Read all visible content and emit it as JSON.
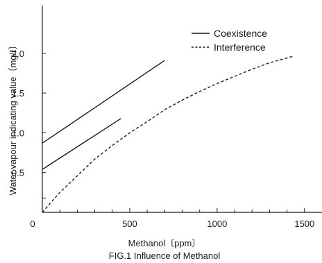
{
  "chart_data": {
    "type": "line",
    "title": "",
    "caption": "FIG.1 Influence of Methanol",
    "xlabel": "Methanol〔ppm〕",
    "ylabel": "Water vapour indicating value〔mg/ℓ〕",
    "xlim": [
      0,
      1600
    ],
    "ylim": [
      0,
      2.6
    ],
    "x_ticks": [
      0,
      500,
      1000,
      1500
    ],
    "y_ticks": [
      0.5,
      1.0,
      1.5,
      2.0
    ],
    "x_tick_labels": [
      "0",
      "500",
      "1000",
      "1500"
    ],
    "y_tick_labels": [
      "0.5",
      "1.0",
      "1.5",
      "2.0"
    ],
    "grid": false,
    "legend_position": "top-right",
    "series": [
      {
        "name": "Coexistence",
        "style": "solid",
        "points": [
          [
            0,
            0.87
          ],
          [
            700,
            1.91
          ]
        ]
      },
      {
        "name": "Coexistence",
        "style": "solid",
        "points": [
          [
            0,
            0.54
          ],
          [
            450,
            1.18
          ]
        ]
      },
      {
        "name": "Interference",
        "style": "dashed",
        "points": [
          [
            0,
            0.0
          ],
          [
            100,
            0.25
          ],
          [
            200,
            0.46
          ],
          [
            300,
            0.67
          ],
          [
            400,
            0.84
          ],
          [
            500,
            1.0
          ],
          [
            600,
            1.14
          ],
          [
            700,
            1.29
          ],
          [
            800,
            1.41
          ],
          [
            900,
            1.52
          ],
          [
            1000,
            1.62
          ],
          [
            1100,
            1.71
          ],
          [
            1200,
            1.8
          ],
          [
            1300,
            1.88
          ],
          [
            1430,
            1.96
          ]
        ]
      }
    ],
    "legend": [
      {
        "label": "Coexistence",
        "style": "solid"
      },
      {
        "label": "Interference",
        "style": "dashed"
      }
    ],
    "colors": {
      "line": "#1a1a1a",
      "axis": "#1a1a1a"
    }
  }
}
